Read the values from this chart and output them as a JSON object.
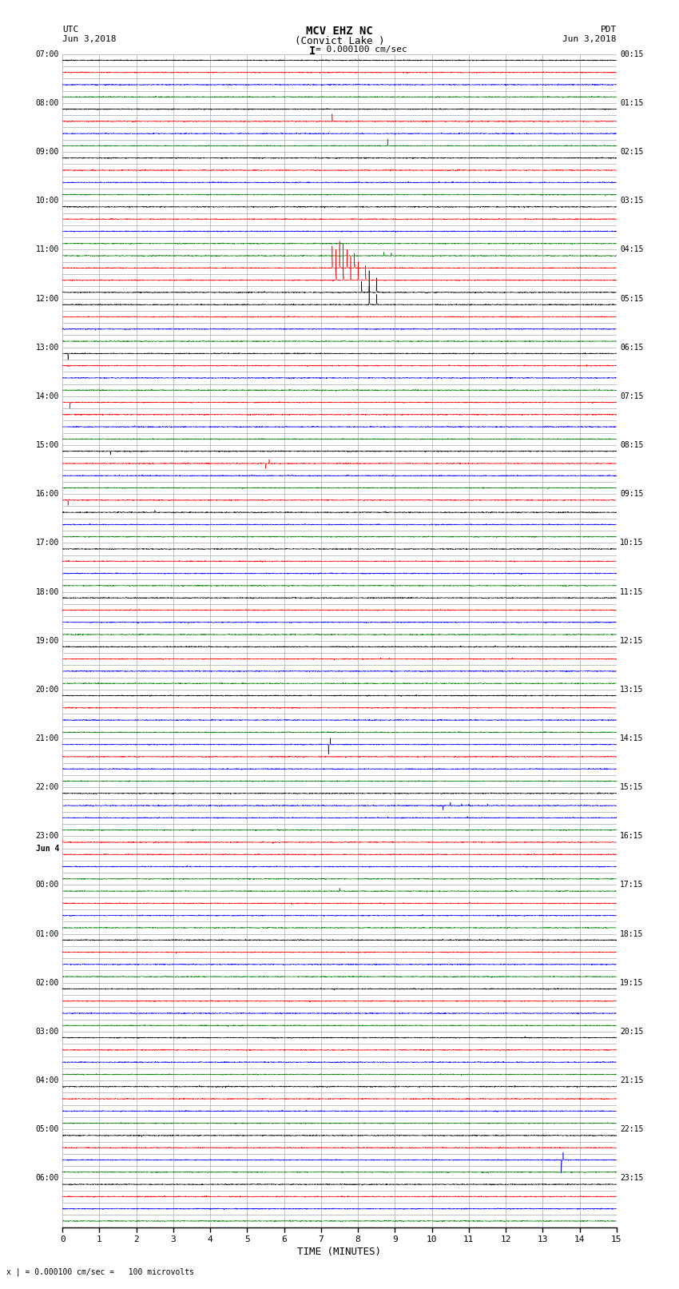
{
  "title_line1": "MCV EHZ NC",
  "title_line2": "(Convict Lake )",
  "scale_label": "I = 0.000100 cm/sec",
  "bottom_label": "x | = 0.000100 cm/sec =   100 microvolts",
  "utc_label": "UTC",
  "utc_date": "Jun 3,2018",
  "pdt_label": "PDT",
  "pdt_date": "Jun 3,2018",
  "xlabel": "TIME (MINUTES)",
  "left_times": [
    "07:00",
    "",
    "",
    "",
    "08:00",
    "",
    "",
    "",
    "09:00",
    "",
    "",
    "",
    "10:00",
    "",
    "",
    "",
    "11:00",
    "",
    "",
    "",
    "12:00",
    "",
    "",
    "",
    "13:00",
    "",
    "",
    "",
    "14:00",
    "",
    "",
    "",
    "15:00",
    "",
    "",
    "",
    "16:00",
    "",
    "",
    "",
    "17:00",
    "",
    "",
    "",
    "18:00",
    "",
    "",
    "",
    "19:00",
    "",
    "",
    "",
    "20:00",
    "",
    "",
    "",
    "21:00",
    "",
    "",
    "",
    "22:00",
    "",
    "",
    "",
    "23:00",
    "Jun 4",
    "",
    "",
    "00:00",
    "",
    "",
    "",
    "01:00",
    "",
    "",
    "",
    "02:00",
    "",
    "",
    "",
    "03:00",
    "",
    "",
    "",
    "04:00",
    "",
    "",
    "",
    "05:00",
    "",
    "",
    "",
    "06:00",
    "",
    "",
    ""
  ],
  "right_times": [
    "00:15",
    "",
    "",
    "",
    "01:15",
    "",
    "",
    "",
    "02:15",
    "",
    "",
    "",
    "03:15",
    "",
    "",
    "",
    "04:15",
    "",
    "",
    "",
    "05:15",
    "",
    "",
    "",
    "06:15",
    "",
    "",
    "",
    "07:15",
    "",
    "",
    "",
    "08:15",
    "",
    "",
    "",
    "09:15",
    "",
    "",
    "",
    "10:15",
    "",
    "",
    "",
    "11:15",
    "",
    "",
    "",
    "12:15",
    "",
    "",
    "",
    "13:15",
    "",
    "",
    "",
    "14:15",
    "",
    "",
    "",
    "15:15",
    "",
    "",
    "",
    "16:15",
    "",
    "",
    "",
    "17:15",
    "",
    "",
    "",
    "18:15",
    "",
    "",
    "",
    "19:15",
    "",
    "",
    "",
    "20:15",
    "",
    "",
    "",
    "21:15",
    "",
    "",
    "",
    "22:15",
    "",
    "",
    "",
    "23:15",
    "",
    "",
    ""
  ],
  "num_rows": 96,
  "x_max": 15,
  "x_ticks": [
    0,
    1,
    2,
    3,
    4,
    5,
    6,
    7,
    8,
    9,
    10,
    11,
    12,
    13,
    14,
    15
  ],
  "bg_color": "#ffffff",
  "colors_cycle": [
    "#000000",
    "#ff0000",
    "#0000ff",
    "#008000"
  ],
  "grid_color": "#aaaaaa",
  "noise_amp": 0.018,
  "spike_amp": 0.12,
  "lw": 0.4
}
